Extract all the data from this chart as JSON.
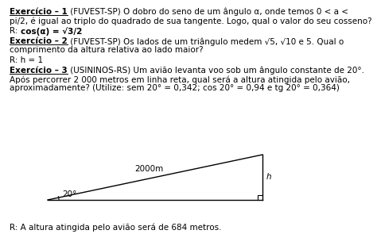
{
  "bg_color": "#ffffff",
  "ex1_label": "Exercício – 1",
  "ex1_rest": " (FUVEST-SP) O dobro do seno de um ângulo α, onde temos 0 < a <",
  "ex1_line2": "pi/2, é igual ao triplo do quadrado de sua tangente. Logo, qual o valor do seu cosseno?",
  "ex1_ans_prefix": "R: ",
  "ex1_ans_bold": "cos(α) = √3/2",
  "ex2_label": "Exercício – 2",
  "ex2_rest": " (FUVEST-SP) Os lados de um triângulo medem √5, √10 e 5. Qual o",
  "ex2_line2": "comprimento da altura relativa ao lado maior?",
  "ex2_answer": "R: h = 1",
  "ex3_label": "Exercício – 3",
  "ex3_rest": " (USININOS-RS) Um avião levanta voo sob um ângulo constante de 20°.",
  "ex3_line2": "Após percorrer 2 000 metros em linha reta, qual será a altura atingida pelo avião,",
  "ex3_line3": "aproximadamente? (Utilize: sem 20° = 0,342; cos 20° = 0,94 e tg 20° = 0,364)",
  "ex3_answer": "R: A altura atingida pelo avião será de 684 metros.",
  "tri_angle_label": "20°",
  "tri_hyp_label": "2000m",
  "tri_h_label": "h",
  "font_size": 7.5
}
